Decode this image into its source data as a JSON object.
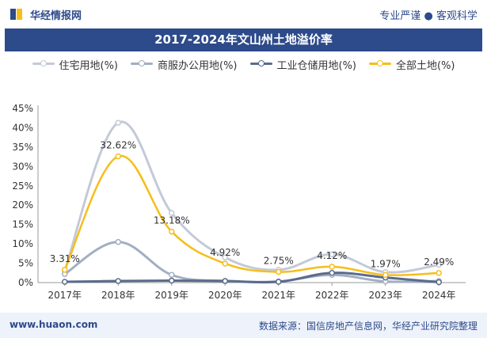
{
  "header": {
    "brand": "华经情报网",
    "tagline": "专业严谨 ● 客观科学"
  },
  "footer": {
    "website": "www.huaon.com",
    "source": "数据来源：国信房地产信息网，华经产业研究院整理"
  },
  "colors": {
    "brand_blue": "#2d4a8a"
  },
  "chart_data": {
    "type": "line",
    "title": "2017-2024年文山州土地溢价率",
    "categories": [
      "2017年",
      "2018年",
      "2019年",
      "2020年",
      "2021年",
      "2022年",
      "2023年",
      "2024年"
    ],
    "ylim": [
      0,
      45
    ],
    "yticks": [
      "0%",
      "5%",
      "10%",
      "15%",
      "20%",
      "25%",
      "30%",
      "35%",
      "40%",
      "45%"
    ],
    "grid": false,
    "legend_position": "top",
    "series": [
      {
        "name": "住宅用地(%)",
        "color": "#c3c9d8",
        "values": [
          3.0,
          41.3,
          18.0,
          6.5,
          3.3,
          7.3,
          2.7,
          4.6
        ],
        "labels": []
      },
      {
        "name": "商服办公用地(%)",
        "color": "#a3aec3",
        "values": [
          2.2,
          10.5,
          2.0,
          0.4,
          0.3,
          2.0,
          0.3,
          0.4
        ],
        "labels": []
      },
      {
        "name": "工业仓储用地(%)",
        "color": "#5a6b8c",
        "values": [
          0.2,
          0.4,
          0.5,
          0.4,
          0.2,
          2.5,
          1.3,
          0.1
        ],
        "labels": []
      },
      {
        "name": "全部土地(%)",
        "color": "#f6be1a",
        "values": [
          3.31,
          32.62,
          13.18,
          4.92,
          2.75,
          4.12,
          1.97,
          2.49
        ],
        "labels": [
          "3.31%",
          "32.62%",
          "13.18%",
          "4.92%",
          "2.75%",
          "4.12%",
          "1.97%",
          "2.49%"
        ]
      }
    ]
  }
}
